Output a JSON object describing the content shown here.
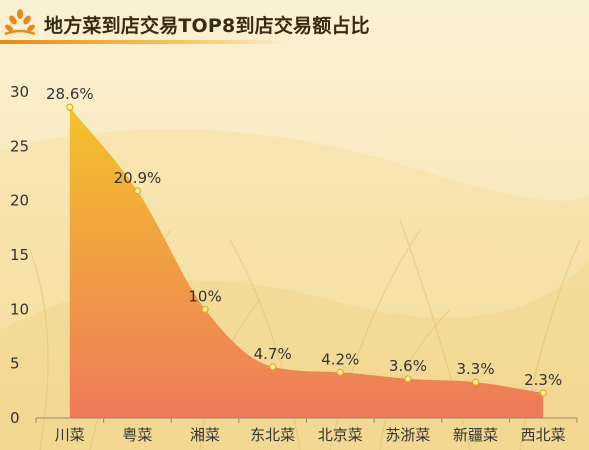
{
  "header": {
    "title": "地方菜到店交易TOP8到店交易额占比",
    "logo_icon": "wheat-icon"
  },
  "colors": {
    "area_top": "#f2c22b",
    "area_bottom": "#ef7a5a",
    "point_fill": "#fff3a0",
    "point_stroke": "#e3a81c",
    "title_underline": "#e88a1a"
  },
  "chart_data": {
    "type": "area",
    "title": "",
    "xlabel": "",
    "ylabel": "",
    "categories": [
      "川菜",
      "粤菜",
      "湘菜",
      "东北菜",
      "北京菜",
      "苏浙菜",
      "新疆菜",
      "西北菜"
    ],
    "values": [
      28.6,
      20.9,
      10,
      4.7,
      4.2,
      3.6,
      3.3,
      2.3
    ],
    "data_labels": [
      "28.6%",
      "20.9%",
      "10%",
      "4.7%",
      "4.2%",
      "3.6%",
      "3.3%",
      "2.3%"
    ],
    "y_ticks": [
      "0",
      "5",
      "10",
      "15",
      "20",
      "25",
      "30"
    ],
    "ylim": [
      0,
      30
    ],
    "grid": false,
    "smooth": true
  }
}
